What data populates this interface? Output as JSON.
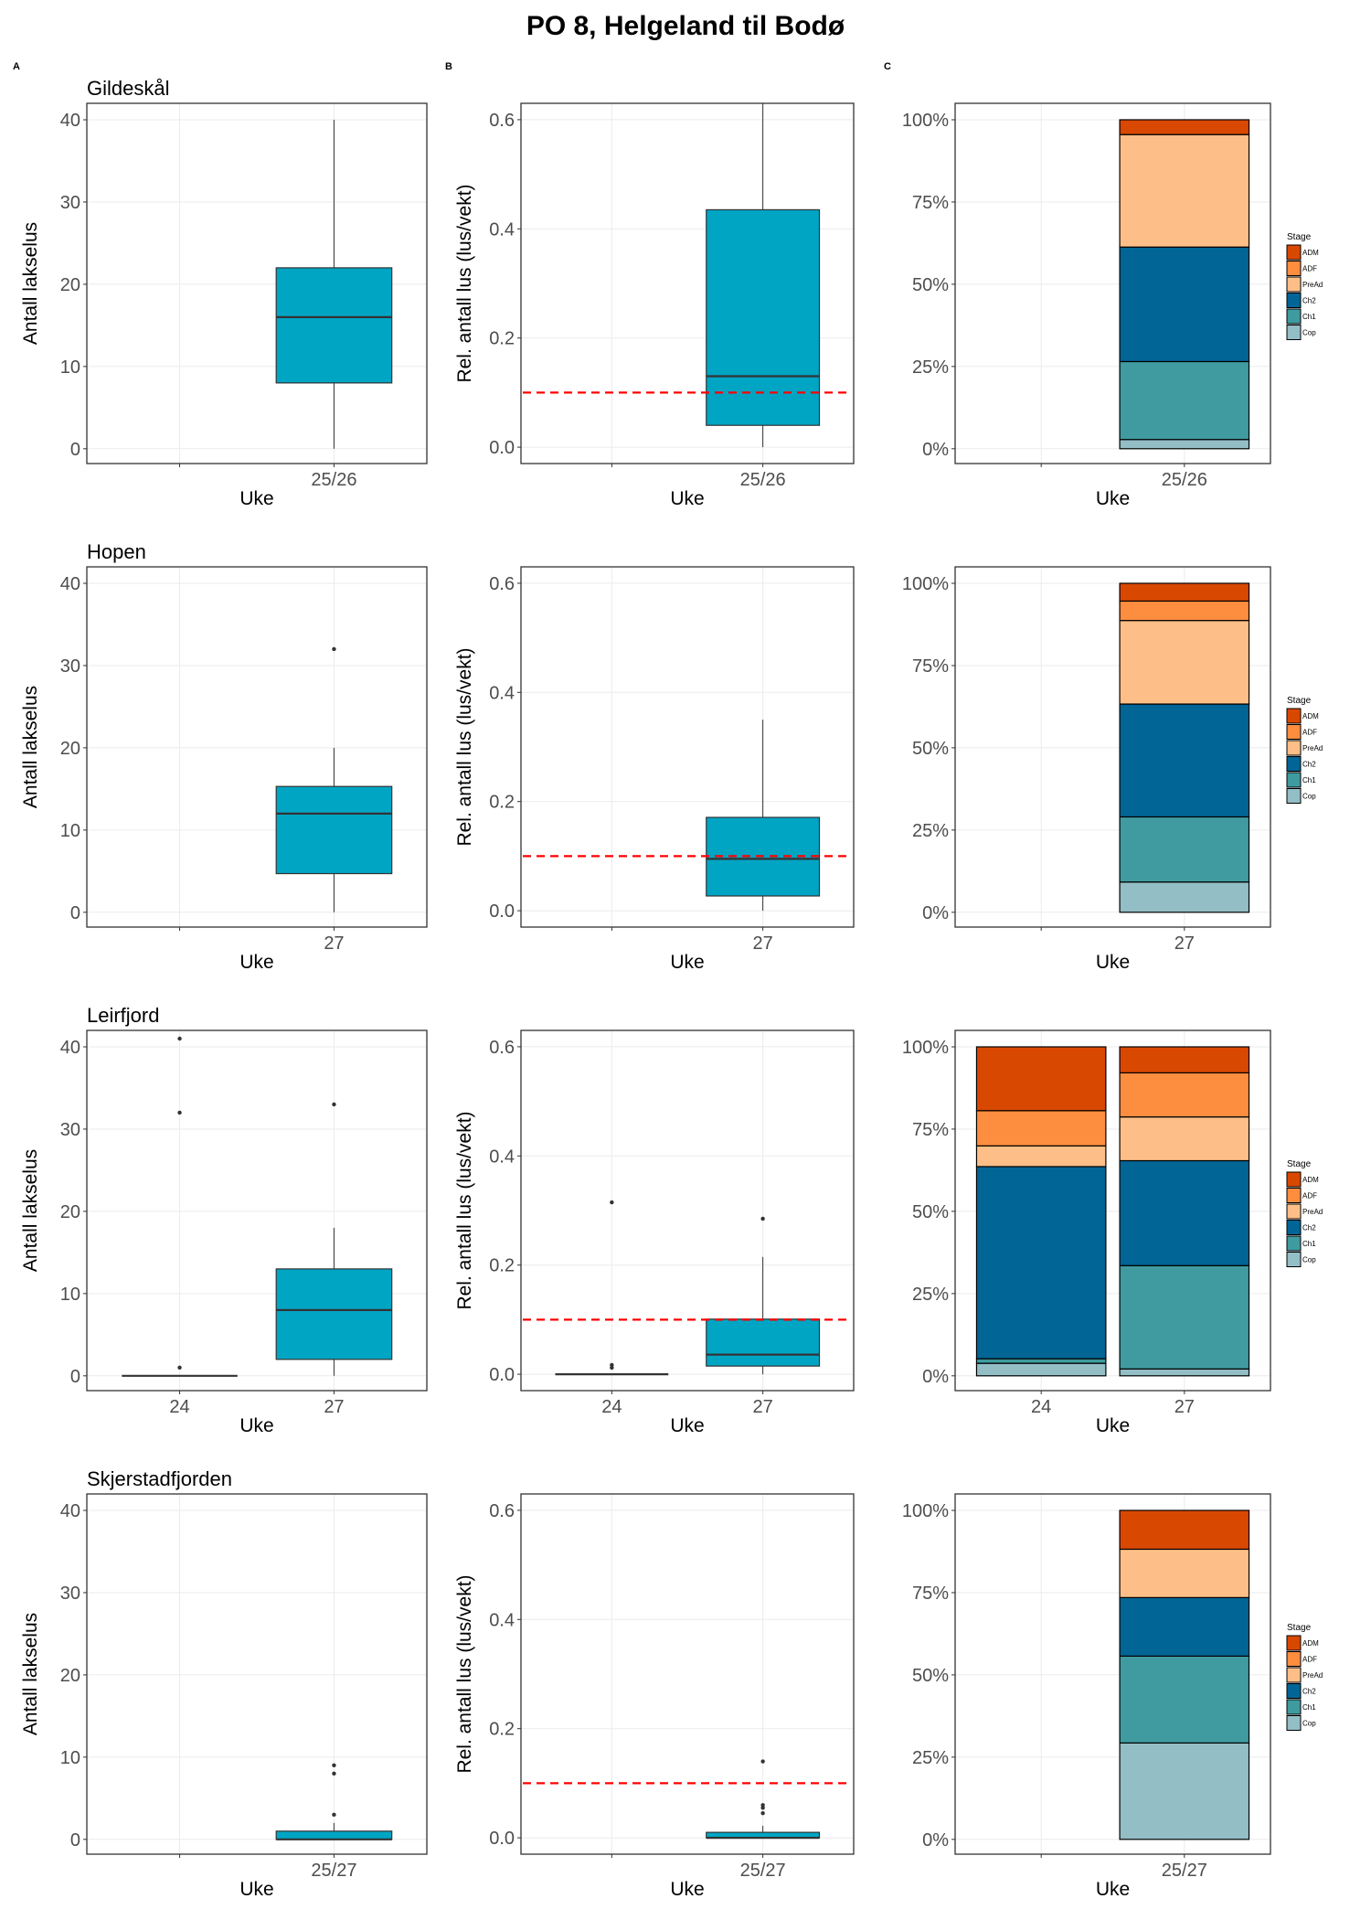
{
  "figure": {
    "title": "PO 8, Helgeland til Bodø",
    "panel_labels": [
      "A",
      "B",
      "C"
    ]
  },
  "colors": {
    "box_fill": "#00A5C4",
    "box_line": "#333333",
    "threshold_line": "#FF0000",
    "grid": "#EBEBEB",
    "frame": "#333333"
  },
  "chart_data": [
    {
      "site": "Gildeskål",
      "count": {
        "type": "boxplot",
        "ylabel": "Antall lakselus",
        "xlabel": "Uke",
        "ylim": [
          -1.8,
          42
        ],
        "yticks": [
          0,
          10,
          20,
          30,
          40
        ],
        "tick_labels": [
          "0",
          "10",
          "20",
          "30",
          "40"
        ],
        "categories": [
          "",
          "25/26"
        ],
        "boxes": [
          null,
          {
            "min": 0,
            "q1": 8,
            "median": 16,
            "q3": 22,
            "max": 40,
            "outliers": []
          }
        ]
      },
      "relative": {
        "type": "boxplot",
        "ylabel": "Rel. antall lus (lus/vekt)",
        "xlabel": "Uke",
        "ylim": [
          -0.03,
          0.63
        ],
        "yticks": [
          0,
          0.2,
          0.4,
          0.6
        ],
        "tick_labels": [
          "0.0",
          "0.2",
          "0.4",
          "0.6"
        ],
        "threshold": 0.1,
        "categories": [
          "",
          "25/26"
        ],
        "boxes": [
          null,
          {
            "min": 0,
            "q1": 0.04,
            "median": 0.13,
            "q3": 0.435,
            "max": 0.65,
            "outliers": []
          }
        ]
      },
      "stage": {
        "type": "bar",
        "stacked": true,
        "xlabel": "Uke",
        "ylim": [
          -4.5,
          105
        ],
        "yticks": [
          0,
          25,
          50,
          75,
          100
        ],
        "tick_labels": [
          "0%",
          "25%",
          "50%",
          "75%",
          "100%"
        ],
        "legend_title": "Stage",
        "legend": "right",
        "categories": [
          "",
          "25/26"
        ],
        "series": [
          {
            "name": "Cop",
            "color": "#93BEC6",
            "values": [
              null,
              2.8
            ]
          },
          {
            "name": "Ch1",
            "color": "#3F9B9F",
            "values": [
              null,
              23.7
            ]
          },
          {
            "name": "Ch2",
            "color": "#016595",
            "values": [
              null,
              34.8
            ]
          },
          {
            "name": "PreAd",
            "color": "#FDBF87",
            "values": [
              null,
              34.2
            ]
          },
          {
            "name": "ADF",
            "color": "#FD8D3F",
            "values": [
              null,
              0
            ]
          },
          {
            "name": "ADM",
            "color": "#D94801",
            "values": [
              null,
              4.5
            ]
          }
        ]
      }
    },
    {
      "site": "Hopen",
      "count": {
        "type": "boxplot",
        "ylabel": "Antall lakselus",
        "xlabel": "Uke",
        "ylim": [
          -1.8,
          42
        ],
        "yticks": [
          0,
          10,
          20,
          30,
          40
        ],
        "tick_labels": [
          "0",
          "10",
          "20",
          "30",
          "40"
        ],
        "categories": [
          "",
          "27"
        ],
        "boxes": [
          null,
          {
            "min": 0,
            "q1": 4.7,
            "median": 12,
            "q3": 15.3,
            "max": 20,
            "outliers": [
              32
            ]
          }
        ]
      },
      "relative": {
        "type": "boxplot",
        "ylabel": "Rel. antall lus (lus/vekt)",
        "xlabel": "Uke",
        "ylim": [
          -0.03,
          0.63
        ],
        "yticks": [
          0,
          0.2,
          0.4,
          0.6
        ],
        "tick_labels": [
          "0.0",
          "0.2",
          "0.4",
          "0.6"
        ],
        "threshold": 0.1,
        "categories": [
          "",
          "27"
        ],
        "boxes": [
          null,
          {
            "min": 0,
            "q1": 0.027,
            "median": 0.095,
            "q3": 0.171,
            "max": 0.35,
            "outliers": []
          }
        ]
      },
      "stage": {
        "type": "bar",
        "stacked": true,
        "xlabel": "Uke",
        "ylim": [
          -4.5,
          105
        ],
        "yticks": [
          0,
          25,
          50,
          75,
          100
        ],
        "tick_labels": [
          "0%",
          "25%",
          "50%",
          "75%",
          "100%"
        ],
        "legend_title": "Stage",
        "legend": "right",
        "categories": [
          "",
          "27"
        ],
        "series": [
          {
            "name": "Cop",
            "color": "#93BEC6",
            "values": [
              null,
              9.2
            ]
          },
          {
            "name": "Ch1",
            "color": "#3F9B9F",
            "values": [
              null,
              19.8
            ]
          },
          {
            "name": "Ch2",
            "color": "#016595",
            "values": [
              null,
              34.3
            ]
          },
          {
            "name": "PreAd",
            "color": "#FDBF87",
            "values": [
              null,
              25.4
            ]
          },
          {
            "name": "ADF",
            "color": "#FD8D3F",
            "values": [
              null,
              5.9
            ]
          },
          {
            "name": "ADM",
            "color": "#D94801",
            "values": [
              null,
              5.4
            ]
          }
        ]
      }
    },
    {
      "site": "Leirfjord",
      "count": {
        "type": "boxplot",
        "ylabel": "Antall lakselus",
        "xlabel": "Uke",
        "ylim": [
          -1.8,
          42
        ],
        "yticks": [
          0,
          10,
          20,
          30,
          40
        ],
        "tick_labels": [
          "0",
          "10",
          "20",
          "30",
          "40"
        ],
        "categories": [
          "24",
          "27"
        ],
        "boxes": [
          {
            "min": 0,
            "q1": 0,
            "median": 0,
            "q3": 0,
            "max": 0,
            "outliers": [
              1,
              32,
              41
            ]
          },
          {
            "min": 0,
            "q1": 2,
            "median": 8,
            "q3": 13,
            "max": 18,
            "outliers": [
              33
            ]
          }
        ]
      },
      "relative": {
        "type": "boxplot",
        "ylabel": "Rel. antall lus (lus/vekt)",
        "xlabel": "Uke",
        "ylim": [
          -0.03,
          0.63
        ],
        "yticks": [
          0,
          0.2,
          0.4,
          0.6
        ],
        "tick_labels": [
          "0.0",
          "0.2",
          "0.4",
          "0.6"
        ],
        "threshold": 0.1,
        "categories": [
          "24",
          "27"
        ],
        "boxes": [
          {
            "min": 0,
            "q1": 0,
            "median": 0,
            "q3": 0,
            "max": 0,
            "outliers": [
              0.012,
              0.017,
              0.315
            ]
          },
          {
            "min": 0,
            "q1": 0.015,
            "median": 0.036,
            "q3": 0.101,
            "max": 0.215,
            "outliers": [
              0.285
            ]
          }
        ]
      },
      "stage": {
        "type": "bar",
        "stacked": true,
        "xlabel": "Uke",
        "ylim": [
          -4.5,
          105
        ],
        "yticks": [
          0,
          25,
          50,
          75,
          100
        ],
        "tick_labels": [
          "0%",
          "25%",
          "50%",
          "75%",
          "100%"
        ],
        "legend_title": "Stage",
        "legend": "right",
        "categories": [
          "24",
          "27"
        ],
        "series": [
          {
            "name": "Cop",
            "color": "#93BEC6",
            "values": [
              3.8,
              2.1
            ]
          },
          {
            "name": "Ch1",
            "color": "#3F9B9F",
            "values": [
              1.4,
              31.4
            ]
          },
          {
            "name": "Ch2",
            "color": "#016595",
            "values": [
              58.4,
              31.9
            ]
          },
          {
            "name": "PreAd",
            "color": "#FDBF87",
            "values": [
              6.3,
              13.3
            ]
          },
          {
            "name": "ADF",
            "color": "#FD8D3F",
            "values": [
              10.7,
              13.4
            ]
          },
          {
            "name": "ADM",
            "color": "#D94801",
            "values": [
              19.4,
              7.9
            ]
          }
        ]
      }
    },
    {
      "site": "Skjerstadfjorden",
      "count": {
        "type": "boxplot",
        "ylabel": "Antall lakselus",
        "xlabel": "Uke",
        "ylim": [
          -1.8,
          42
        ],
        "yticks": [
          0,
          10,
          20,
          30,
          40
        ],
        "tick_labels": [
          "0",
          "10",
          "20",
          "30",
          "40"
        ],
        "categories": [
          "",
          "25/27"
        ],
        "boxes": [
          null,
          {
            "min": 0,
            "q1": 0,
            "median": 0,
            "q3": 1,
            "max": 2,
            "outliers": [
              3,
              8,
              9
            ]
          }
        ]
      },
      "relative": {
        "type": "boxplot",
        "ylabel": "Rel. antall lus (lus/vekt)",
        "xlabel": "Uke",
        "ylim": [
          -0.03,
          0.63
        ],
        "yticks": [
          0,
          0.2,
          0.4,
          0.6
        ],
        "tick_labels": [
          "0.0",
          "0.2",
          "0.4",
          "0.6"
        ],
        "threshold": 0.1,
        "categories": [
          "",
          "25/27"
        ],
        "boxes": [
          null,
          {
            "min": 0,
            "q1": 0,
            "median": 0,
            "q3": 0.01,
            "max": 0.022,
            "outliers": [
              0.045,
              0.055,
              0.06,
              0.14
            ]
          }
        ]
      },
      "stage": {
        "type": "bar",
        "stacked": true,
        "xlabel": "Uke",
        "ylim": [
          -4.5,
          105
        ],
        "yticks": [
          0,
          25,
          50,
          75,
          100
        ],
        "tick_labels": [
          "0%",
          "25%",
          "50%",
          "75%",
          "100%"
        ],
        "legend_title": "Stage",
        "legend": "right",
        "categories": [
          "",
          "25/27"
        ],
        "series": [
          {
            "name": "Cop",
            "color": "#93BEC6",
            "values": [
              null,
              29.3
            ]
          },
          {
            "name": "Ch1",
            "color": "#3F9B9F",
            "values": [
              null,
              26.4
            ]
          },
          {
            "name": "Ch2",
            "color": "#016595",
            "values": [
              null,
              17.8
            ]
          },
          {
            "name": "PreAd",
            "color": "#FDBF87",
            "values": [
              null,
              14.7
            ]
          },
          {
            "name": "ADF",
            "color": "#FD8D3F",
            "values": [
              null,
              0
            ]
          },
          {
            "name": "ADM",
            "color": "#D94801",
            "values": [
              null,
              11.8
            ]
          }
        ]
      }
    }
  ]
}
